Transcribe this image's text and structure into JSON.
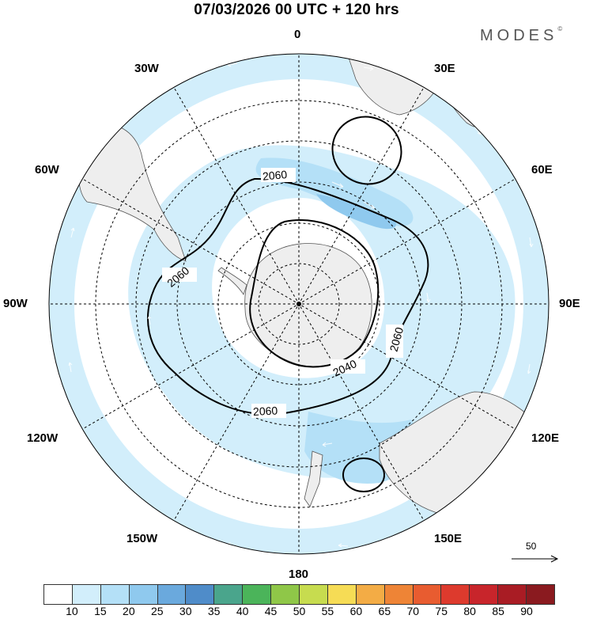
{
  "title": "07/03/2026  00 UTC  + 120 hrs",
  "brand": "MODES",
  "brand_mark": "©",
  "longitude_labels": {
    "n0": "0",
    "n30e": "30E",
    "n60e": "60E",
    "n90e": "90E",
    "n120e": "120E",
    "n150e": "150E",
    "n180": "180",
    "n150w": "150W",
    "n120w": "120W",
    "n90w": "90W",
    "n60w": "60W",
    "n30w": "30W"
  },
  "contours": {
    "outer_label": "2060",
    "inner_label": "2040"
  },
  "reference_vector": {
    "value": "50"
  },
  "colorbar": {
    "colors": [
      "#ffffff",
      "#d2eefb",
      "#b4e0f7",
      "#8fc9ee",
      "#6aa9dd",
      "#4f8cc9",
      "#4aa58c",
      "#4bb45a",
      "#8fc748",
      "#c7dc4f",
      "#f6dc55",
      "#f3ac45",
      "#ee8436",
      "#e85c30",
      "#dd3a2d",
      "#c8252b",
      "#a91c24",
      "#8a1a1f"
    ],
    "tick_labels": [
      "10",
      "15",
      "20",
      "25",
      "30",
      "35",
      "40",
      "45",
      "50",
      "55",
      "60",
      "65",
      "70",
      "75",
      "80",
      "85",
      "90"
    ]
  },
  "colors": {
    "land": "#eeeeee",
    "wind_light": "#d2eefb",
    "wind_mid": "#b4e0f7",
    "wind_dark": "#8fc9ee"
  }
}
